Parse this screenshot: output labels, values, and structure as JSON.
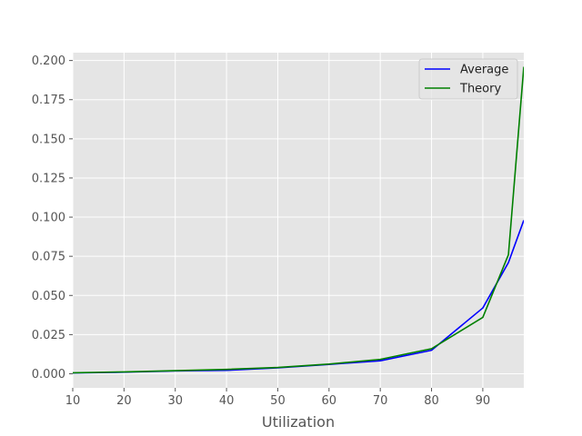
{
  "chart_data": {
    "type": "line",
    "title": "",
    "xlabel": "Utilization",
    "ylabel": "",
    "xlim": [
      10,
      98
    ],
    "ylim": [
      -0.009,
      0.205
    ],
    "xticks": [
      10,
      20,
      30,
      40,
      50,
      60,
      70,
      80,
      90
    ],
    "yticks": [
      0.0,
      0.025,
      0.05,
      0.075,
      0.1,
      0.125,
      0.15,
      0.175,
      0.2
    ],
    "ytick_labels": [
      "0.000",
      "0.025",
      "0.050",
      "0.075",
      "0.100",
      "0.125",
      "0.150",
      "0.175",
      "0.200"
    ],
    "grid": true,
    "legend_position": "top-right",
    "series": [
      {
        "name": "Average",
        "color": "#0000ff",
        "x": [
          10,
          20,
          30,
          40,
          50,
          60,
          70,
          80,
          90,
          95,
          98
        ],
        "y": [
          0.0005,
          0.001,
          0.0018,
          0.0022,
          0.0038,
          0.006,
          0.0083,
          0.015,
          0.042,
          0.071,
          0.098
        ]
      },
      {
        "name": "Theory",
        "color": "#008000",
        "x": [
          10,
          20,
          30,
          40,
          50,
          60,
          70,
          80,
          90,
          95,
          98
        ],
        "y": [
          0.0006,
          0.0012,
          0.002,
          0.0028,
          0.004,
          0.0062,
          0.0092,
          0.016,
          0.036,
          0.076,
          0.196
        ]
      }
    ]
  }
}
